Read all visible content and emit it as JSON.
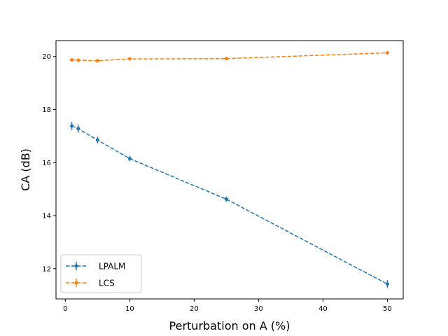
{
  "chart_data": {
    "type": "line",
    "title": "",
    "xlabel": "Perturbation on A (%)",
    "ylabel": "CA (dB)",
    "x": [
      1,
      2,
      5,
      10,
      25,
      50
    ],
    "xlim": [
      -1.45,
      52.45
    ],
    "ylim": [
      10.86,
      20.6
    ],
    "xticks": [
      0,
      10,
      20,
      30,
      40,
      50
    ],
    "xtick_labels": [
      "0",
      "10",
      "20",
      "30",
      "40",
      "50"
    ],
    "yticks": [
      12,
      14,
      16,
      18,
      20
    ],
    "ytick_labels": [
      "12",
      "14",
      "16",
      "18",
      "20"
    ],
    "grid": false,
    "legend_position": "lower-left",
    "series": [
      {
        "name": "LPALM",
        "color": "#1f77b4",
        "linestyle": "dashed",
        "marker": "circle",
        "values": [
          17.38,
          17.28,
          16.85,
          16.15,
          14.62,
          11.42
        ],
        "errors": [
          0.15,
          0.15,
          0.12,
          0.1,
          0.1,
          0.15
        ]
      },
      {
        "name": "LCS",
        "color": "#ff7f0e",
        "linestyle": "dashed",
        "marker": "circle",
        "values": [
          19.87,
          19.86,
          19.84,
          19.91,
          19.92,
          20.14
        ],
        "errors": [
          0.02,
          0.02,
          0.02,
          0.02,
          0.02,
          0.02
        ]
      }
    ]
  }
}
